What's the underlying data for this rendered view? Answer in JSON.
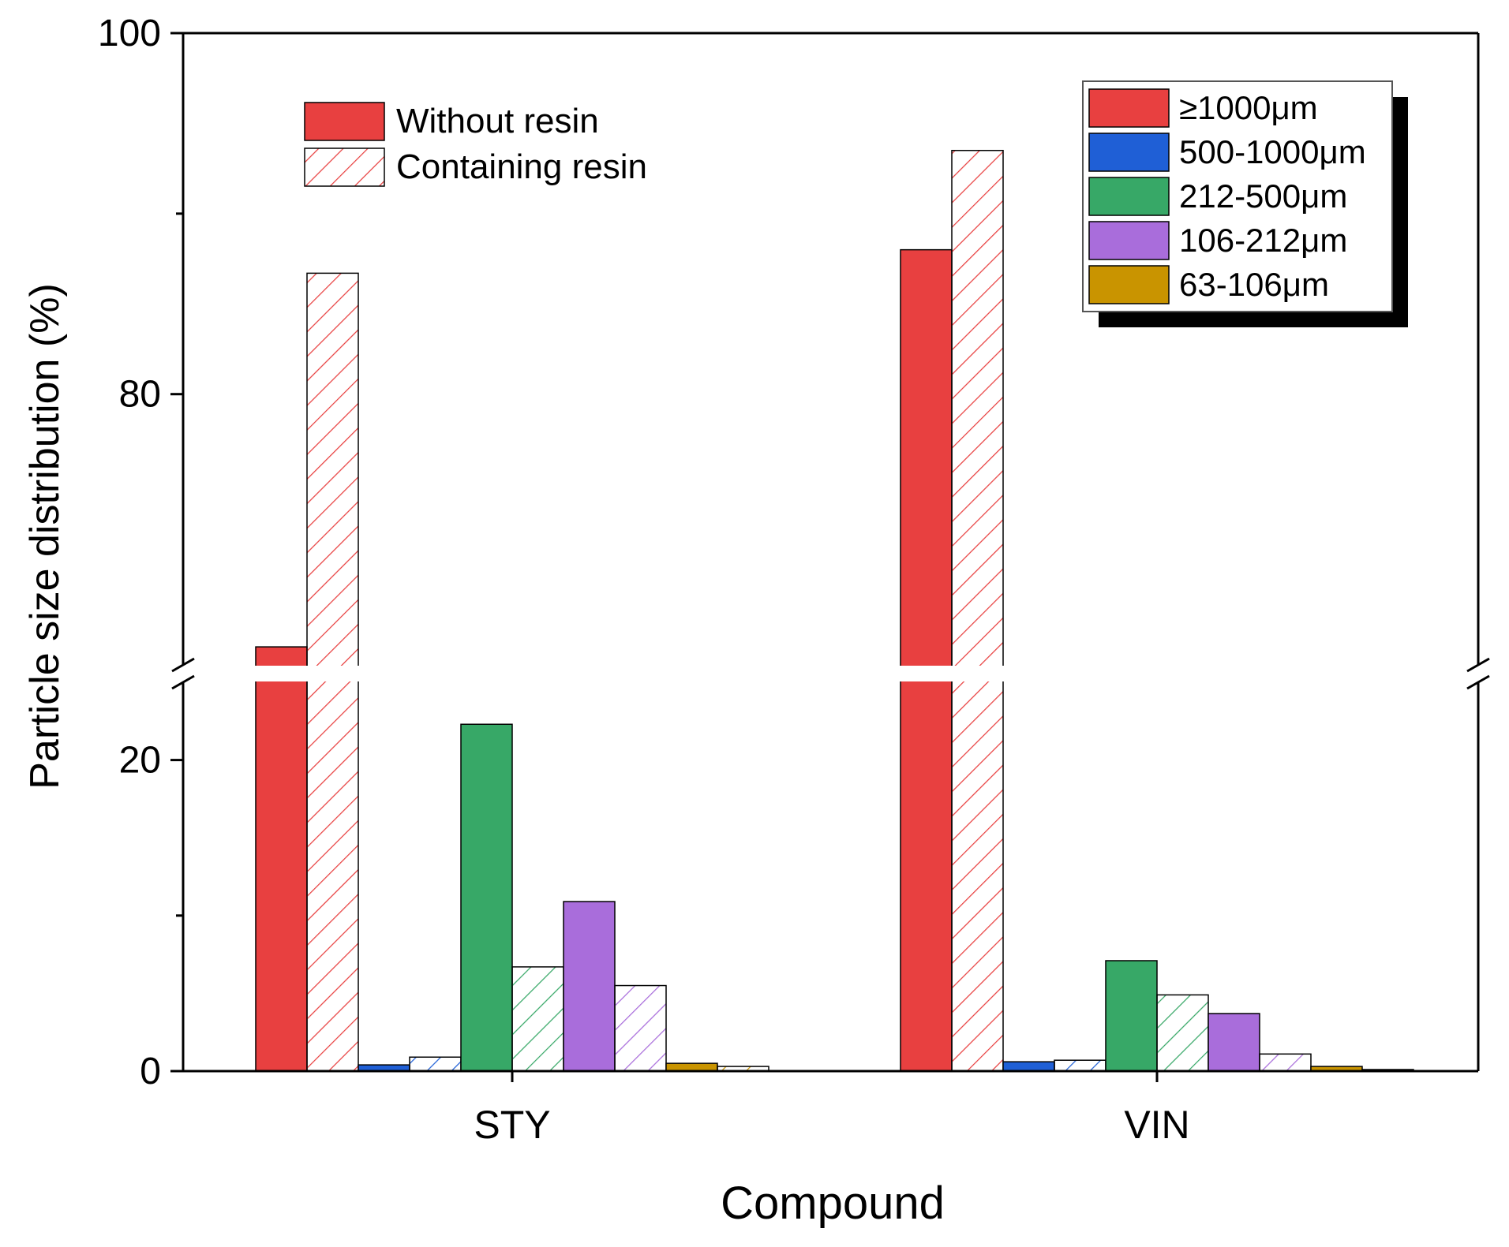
{
  "chart_data": {
    "type": "bar",
    "title": "",
    "xlabel": "Compound",
    "ylabel": "Particle size distribution (%)",
    "categories": [
      "STY",
      "VIN"
    ],
    "y_axis": {
      "broken": true,
      "lower_range": [
        0,
        25
      ],
      "upper_range": [
        65,
        100
      ],
      "ticks": [
        0,
        20,
        80,
        100
      ],
      "tick_labels": [
        "0",
        "20",
        "80",
        "100"
      ]
    },
    "size_classes": [
      {
        "key": "ge1000",
        "label": "≥1000μm",
        "color": "#e84040"
      },
      {
        "key": "500_1000",
        "label": "500-1000μm",
        "color": "#1f5fd6"
      },
      {
        "key": "212_500",
        "label": "212-500μm",
        "color": "#37a867"
      },
      {
        "key": "106_212",
        "label": "106-212μm",
        "color": "#a96ddb"
      },
      {
        "key": "63_106",
        "label": "63-106μm",
        "color": "#c99400"
      }
    ],
    "resin_conditions": [
      {
        "key": "without",
        "label": "Without resin",
        "fill": "solid"
      },
      {
        "key": "containing",
        "label": "Containing resin",
        "fill": "hatched"
      }
    ],
    "series": [
      {
        "size_class": "≥1000μm",
        "condition": "Without resin",
        "values": [
          66,
          88
        ]
      },
      {
        "size_class": "≥1000μm",
        "condition": "Containing resin",
        "values": [
          86.7,
          93.5
        ]
      },
      {
        "size_class": "500-1000μm",
        "condition": "Without resin",
        "values": [
          0.4,
          0.6
        ]
      },
      {
        "size_class": "500-1000μm",
        "condition": "Containing resin",
        "values": [
          0.9,
          0.7
        ]
      },
      {
        "size_class": "212-500μm",
        "condition": "Without resin",
        "values": [
          22.3,
          7.1
        ]
      },
      {
        "size_class": "212-500μm",
        "condition": "Containing resin",
        "values": [
          6.7,
          4.9
        ]
      },
      {
        "size_class": "106-212μm",
        "condition": "Without resin",
        "values": [
          10.9,
          3.7
        ]
      },
      {
        "size_class": "106-212μm",
        "condition": "Containing resin",
        "values": [
          5.5,
          1.1
        ]
      },
      {
        "size_class": "63-106μm",
        "condition": "Without resin",
        "values": [
          0.5,
          0.3
        ]
      },
      {
        "size_class": "63-106μm",
        "condition": "Containing resin",
        "values": [
          0.3,
          0.1
        ]
      }
    ],
    "legend_size_position": "top-right",
    "legend_condition_position": "top-left",
    "grid": false
  }
}
